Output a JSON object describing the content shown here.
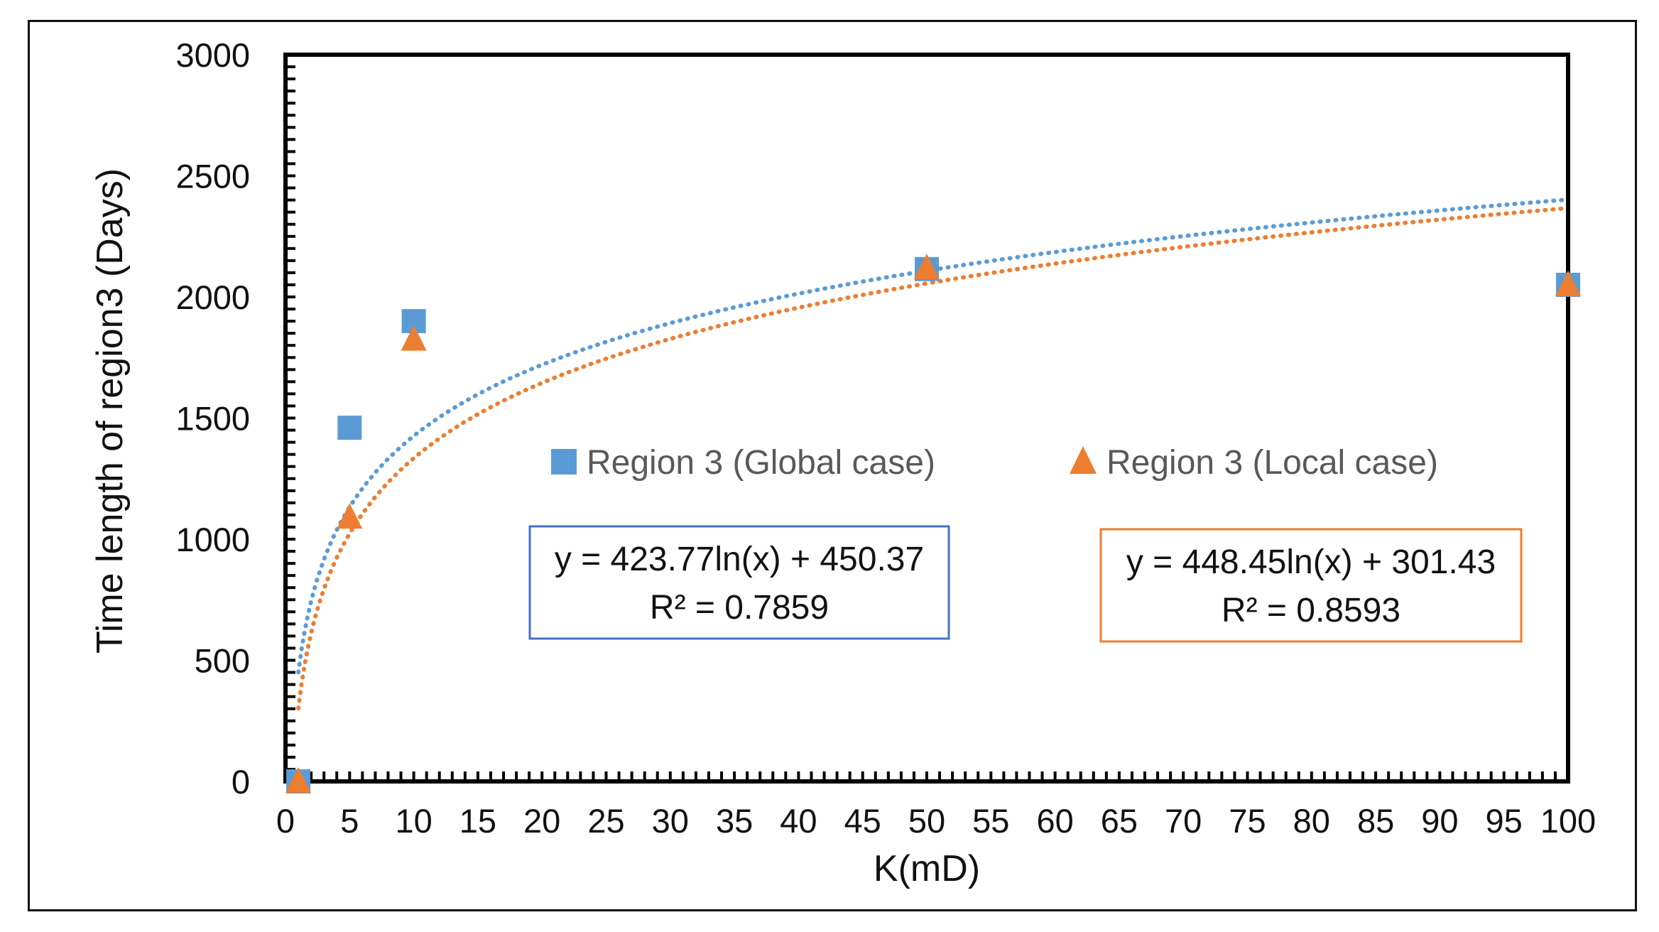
{
  "chart_data": {
    "type": "scatter",
    "title": "",
    "xlabel": "K(mD)",
    "ylabel": "Time length of region3 (Days)",
    "xlim": [
      0,
      100
    ],
    "ylim": [
      0,
      3000
    ],
    "x_ticks": [
      "0",
      "5",
      "10",
      "15",
      "20",
      "25",
      "30",
      "35",
      "40",
      "45",
      "50",
      "55",
      "60",
      "65",
      "70",
      "75",
      "80",
      "85",
      "90",
      "95",
      "100"
    ],
    "y_ticks": [
      "0",
      "500",
      "1000",
      "1500",
      "2000",
      "2500",
      "3000"
    ],
    "series": [
      {
        "name": "Region 3 (Global case)",
        "marker": "square",
        "color": "#5B9BD5",
        "x": [
          1,
          5,
          10,
          50,
          100
        ],
        "y": [
          0,
          1460,
          1900,
          2115,
          2050
        ],
        "trendline": {
          "type": "log",
          "a": 423.77,
          "b": 450.37,
          "equation": "y = 423.77ln(x) + 450.37",
          "r2": "R² = 0.7859"
        }
      },
      {
        "name": "Region 3 (Local case)",
        "marker": "triangle",
        "color": "#ED7D31",
        "x": [
          1,
          5,
          10,
          50,
          100
        ],
        "y": [
          0,
          1090,
          1825,
          2120,
          2050
        ],
        "trendline": {
          "type": "log",
          "a": 448.45,
          "b": 301.43,
          "equation": "y = 448.45ln(x) + 301.43",
          "r2": "R² = 0.8593"
        }
      }
    ],
    "equation_box_colors": [
      "#4472C4",
      "#ED7D31"
    ],
    "legend_position": "middle",
    "grid": false
  }
}
